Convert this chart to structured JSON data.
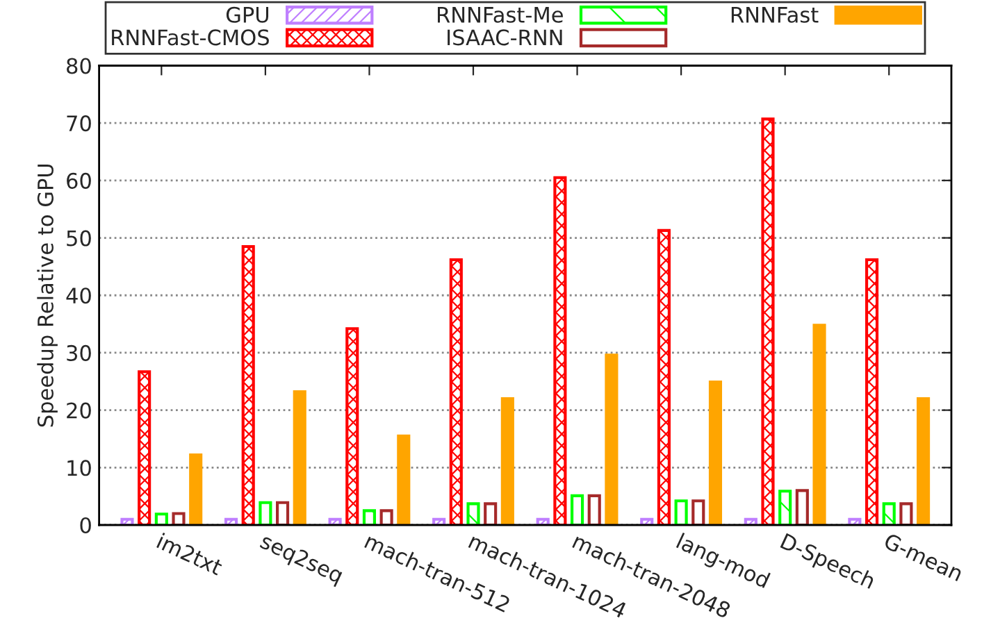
{
  "chart_data": {
    "type": "bar",
    "ylabel": "Speedup Relative to GPU",
    "categories": [
      "im2txt",
      "seq2seq",
      "mach-tran-512",
      "mach-tran-1024",
      "mach-tran-2048",
      "lang-mod",
      "D-Speech",
      "G-mean"
    ],
    "series": [
      {
        "name": "GPU",
        "color": "#bf7fff",
        "values": [
          1,
          1,
          1,
          1,
          1,
          1,
          1,
          1
        ]
      },
      {
        "name": "RNNFast-CMOS",
        "color": "#ff0000",
        "values": [
          26.7,
          48.5,
          34.2,
          46.2,
          60.5,
          51.3,
          70.7,
          46.2
        ]
      },
      {
        "name": "RNNFast-Me",
        "color": "#00ff00",
        "values": [
          1.9,
          3.9,
          2.5,
          3.7,
          5.1,
          4.2,
          5.9,
          3.7
        ]
      },
      {
        "name": "ISAAC-RNN",
        "color": "#a52a2a",
        "values": [
          2.0,
          3.9,
          2.5,
          3.7,
          5.1,
          4.2,
          6.0,
          3.7
        ]
      },
      {
        "name": "RNNFast",
        "color": "#ffa500",
        "values": [
          12.2,
          23.2,
          15.5,
          22.0,
          29.6,
          24.9,
          34.8,
          22.0
        ]
      }
    ],
    "ylim": [
      0,
      80
    ],
    "yticks": [
      0,
      10,
      20,
      30,
      40,
      50,
      60,
      70,
      80
    ],
    "grid": "y",
    "legend": "top"
  }
}
